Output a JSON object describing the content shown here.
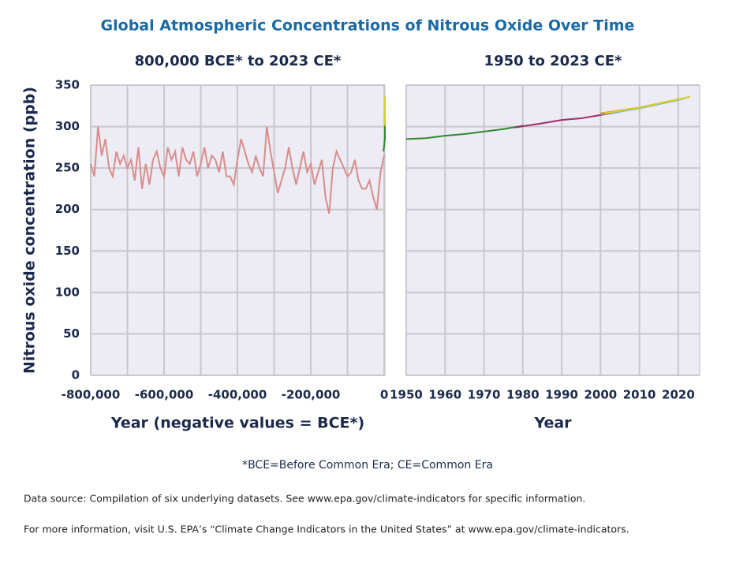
{
  "title": "Global Atmospheric Concentrations of Nitrous Oxide Over Time",
  "chart_data": [
    {
      "type": "line",
      "title": "800,000 BCE* to 2023 CE*",
      "y_label": "Nitrous oxide concentration (ppb)",
      "x_label": "Year (negative values = BCE*)",
      "xlim": [
        -800000,
        2023
      ],
      "ylim": [
        0,
        350
      ],
      "xticks": [
        {
          "value": -800000,
          "label": "-800,000"
        },
        {
          "value": -600000,
          "label": "-600,000"
        },
        {
          "value": -400000,
          "label": "-400,000"
        },
        {
          "value": -200000,
          "label": "-200,000"
        },
        0
      ],
      "x_minor_ticks": [
        -700000,
        -500000,
        -300000,
        -100000
      ],
      "yticks": [
        0,
        50,
        100,
        150,
        200,
        250,
        300,
        350
      ],
      "grid": true,
      "series": [
        {
          "color": "#d98c8c",
          "x": [
            -800000,
            -790000,
            -780000,
            -770000,
            -760000,
            -750000,
            -740000,
            -730000,
            -720000,
            -710000,
            -700000,
            -690000,
            -680000,
            -670000,
            -660000,
            -650000,
            -640000,
            -630000,
            -620000,
            -610000,
            -600000,
            -590000,
            -580000,
            -570000,
            -560000,
            -550000,
            -540000,
            -530000,
            -520000,
            -510000,
            -500000,
            -490000,
            -480000,
            -470000,
            -460000,
            -450000,
            -440000,
            -430000,
            -420000,
            -410000,
            -400000,
            -390000,
            -380000,
            -370000,
            -360000,
            -350000,
            -340000,
            -330000,
            -320000,
            -310000,
            -300000,
            -290000,
            -280000,
            -270000,
            -260000,
            -250000,
            -240000,
            -230000,
            -220000,
            -210000,
            -200000,
            -190000,
            -180000,
            -170000,
            -160000,
            -150000,
            -140000,
            -130000,
            -120000,
            -110000,
            -100000,
            -90000,
            -80000,
            -70000,
            -60000,
            -50000,
            -40000,
            -30000,
            -20000,
            -10000,
            0
          ],
          "values": [
            255,
            240,
            300,
            265,
            285,
            250,
            240,
            270,
            255,
            265,
            250,
            260,
            235,
            275,
            225,
            255,
            230,
            260,
            270,
            250,
            240,
            275,
            260,
            270,
            240,
            275,
            260,
            255,
            270,
            240,
            255,
            275,
            250,
            265,
            260,
            245,
            270,
            240,
            240,
            230,
            260,
            285,
            270,
            255,
            245,
            265,
            250,
            240,
            300,
            270,
            245,
            220,
            235,
            250,
            275,
            250,
            230,
            250,
            270,
            245,
            255,
            230,
            245,
            260,
            215,
            195,
            250,
            270,
            260,
            250,
            240,
            245,
            260,
            235,
            225,
            225,
            235,
            215,
            200,
            245,
            265
          ]
        },
        {
          "color": "#2e8b2e",
          "x": [
            -2000,
            1950,
            2023
          ],
          "values": [
            270,
            285,
            336
          ]
        },
        {
          "color": "#d8d020",
          "x": [
            1980,
            2023
          ],
          "values": [
            301,
            336
          ]
        }
      ]
    },
    {
      "type": "line",
      "title": "1950 to 2023 CE*",
      "x_label": "Year",
      "xlim": [
        1950,
        2025.5
      ],
      "ylim": [
        0,
        350
      ],
      "xticks": [
        1950,
        1960,
        1970,
        1980,
        1990,
        2000,
        2010,
        2020
      ],
      "yticks": [
        0,
        50,
        100,
        150,
        200,
        250,
        300,
        350
      ],
      "grid": true,
      "series": [
        {
          "color": "#2e8b2e",
          "x": [
            1950,
            1955,
            1960,
            1965,
            1970,
            1975,
            1980
          ],
          "values": [
            285,
            286,
            289,
            291,
            294,
            297,
            301
          ]
        },
        {
          "color": "#9b2d6e",
          "x": [
            1978,
            1985,
            1990,
            1995,
            2000,
            2005,
            2010
          ],
          "values": [
            299,
            304,
            308,
            310,
            314,
            318,
            323
          ]
        },
        {
          "color": "#7fb8d8",
          "x": [
            2000,
            2005,
            2010,
            2015,
            2020,
            2023
          ],
          "values": [
            315,
            318,
            322,
            327,
            332,
            336
          ]
        },
        {
          "color": "#e08a2e",
          "x": [
            2000,
            2010,
            2020
          ],
          "values": [
            316,
            323,
            333
          ]
        },
        {
          "color": "#d8d020",
          "x": [
            2001,
            2010,
            2020,
            2023
          ],
          "values": [
            316,
            323,
            333,
            336
          ]
        }
      ]
    }
  ],
  "footnote": "*BCE=Before Common Era; CE=Common Era",
  "source": "Data source: Compilation of six underlying datasets. See www.epa.gov/climate-indicators for specific information.",
  "more_info": "For more information, visit U.S. EPA’s “Climate Change Indicators in the United States” at www.epa.gov/climate-indicators."
}
